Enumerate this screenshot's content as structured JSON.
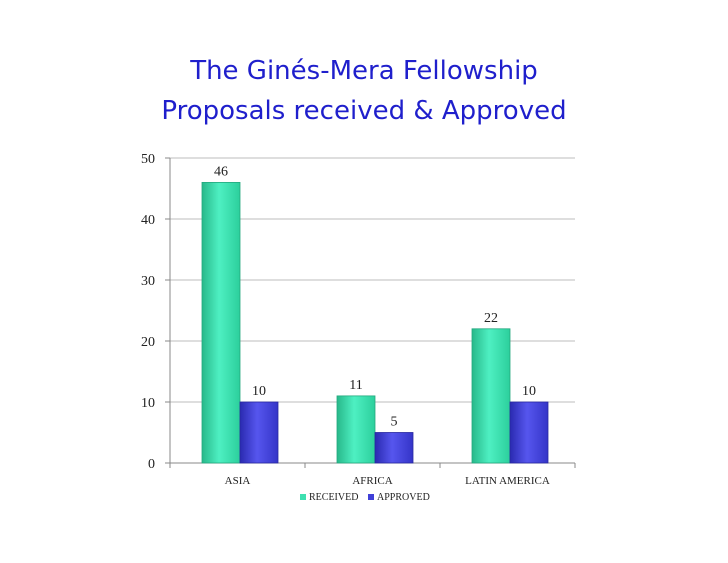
{
  "chart_data": {
    "type": "bar",
    "title": "The Ginés-Mera Fellowship",
    "subtitle": "Proposals received & Approved",
    "xlabel": "",
    "ylabel": "",
    "categories": [
      "ASIA",
      "AFRICA",
      "LATIN AMERICA"
    ],
    "series": [
      {
        "name": "RECEIVED",
        "values": [
          46,
          11,
          22
        ],
        "color": "#3ee0b0"
      },
      {
        "name": "APPROVED",
        "values": [
          10,
          5,
          10
        ],
        "color": "#4040d8"
      }
    ],
    "ylim": [
      0,
      50
    ],
    "yticks": [
      0,
      10,
      20,
      30,
      40,
      50
    ],
    "grid": true,
    "legend": "bottom"
  }
}
